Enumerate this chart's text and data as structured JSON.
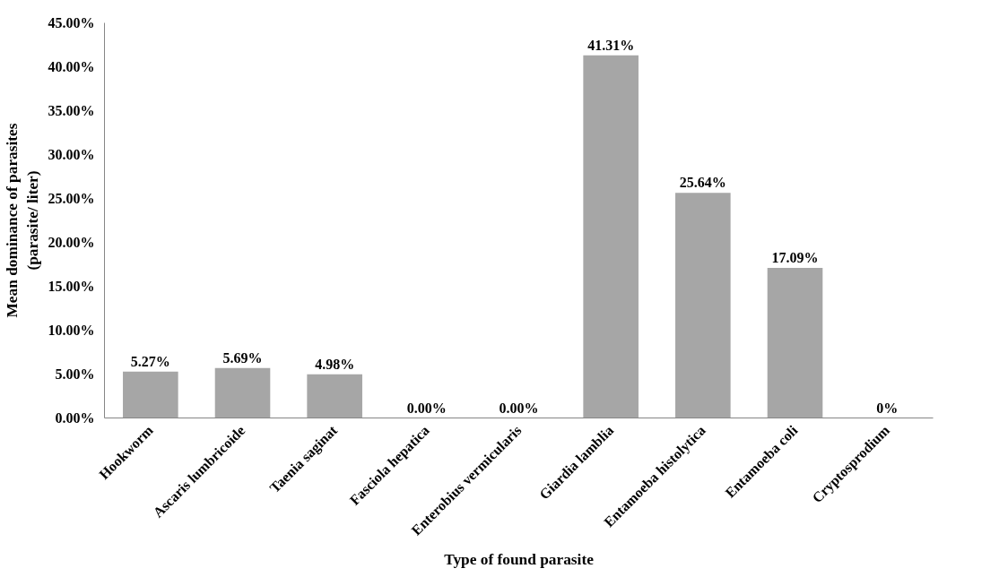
{
  "chart_data": {
    "type": "bar",
    "xlabel": "Type of found parasite",
    "ylabel": "Mean dominance of parasites\n(parasite/ liter)",
    "categories": [
      "Hookworm",
      "Ascaris lumbricoide",
      "Taenia saginat",
      "Fasciola hepatica",
      "Enterobius vermicularis",
      "Giardia lamblia",
      "Entamoeba histolytica",
      "Entamoeba coli",
      "Cryptosprodium"
    ],
    "values": [
      5.27,
      5.69,
      4.98,
      0,
      0,
      41.31,
      25.64,
      17.09,
      0
    ],
    "value_labels": [
      "5.27%",
      "5.69%",
      "4.98%",
      "0.00%",
      "0.00%",
      "41.31%",
      "25.64%",
      "17.09%",
      "0%"
    ],
    "color": "#a6a6a6",
    "ylim": [
      0,
      45
    ],
    "yticks": [
      {
        "value": 0,
        "label": "0.00%"
      },
      {
        "value": 5,
        "label": "5.00%"
      },
      {
        "value": 10,
        "label": "10.00%"
      },
      {
        "value": 15,
        "label": "15.00%"
      },
      {
        "value": 20,
        "label": "20.00%"
      },
      {
        "value": 25,
        "label": "25.00%"
      },
      {
        "value": 30,
        "label": "30.00%"
      },
      {
        "value": 35,
        "label": "35.00%"
      },
      {
        "value": 40,
        "label": "40.00%"
      },
      {
        "value": 45,
        "label": "45.00%"
      }
    ],
    "grid": false
  }
}
